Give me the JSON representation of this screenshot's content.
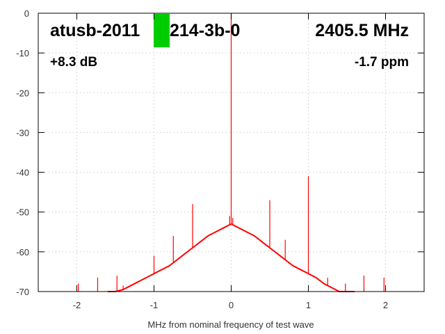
{
  "chart_data": {
    "type": "line",
    "annotations": [
      "atusb-2011",
      "214-3b-0",
      "2405.5 MHz",
      "+8.3 dB",
      "-1.7 ppm"
    ],
    "xlabel": "MHz from nominal frequency of test wave",
    "color": "#ff0000",
    "grid": true,
    "xlim": [
      -2.5,
      2.5
    ],
    "ylim": [
      -70,
      0
    ],
    "xticks": [
      -2,
      -1,
      0,
      1,
      2
    ],
    "yticks": [
      0,
      -10,
      -20,
      -30,
      -40,
      -50,
      -60,
      -70
    ],
    "x": [
      -1.6,
      -1.5,
      -1.4,
      -1.3,
      -1.2,
      -1.1,
      -1.0,
      -0.9,
      -0.8,
      -0.7,
      -0.6,
      -0.5,
      -0.4,
      -0.3,
      -0.2,
      -0.1,
      0,
      0.1,
      0.2,
      0.3,
      0.4,
      0.5,
      0.6,
      0.7,
      0.8,
      0.9,
      1.0,
      1.1,
      1.2,
      1.3,
      1.4,
      1.5,
      1.6
    ],
    "values": [
      -70,
      -70,
      -69.5,
      -68.5,
      -67.5,
      -66.5,
      -65.5,
      -64.5,
      -63.5,
      -62,
      -60.5,
      -59,
      -57.5,
      -56,
      -55,
      -54,
      -53,
      -54,
      -55,
      -56,
      -57.5,
      -59,
      -60.5,
      -62,
      -63.5,
      -64.5,
      -65.5,
      -66.5,
      -68,
      -69,
      -70,
      -70,
      -70
    ],
    "spikes": {
      "x": [
        -1.98,
        -1.73,
        -1.48,
        -1.4,
        -1.0,
        -0.75,
        -0.5,
        -0.02,
        0,
        0.02,
        0.5,
        0.7,
        1.0,
        1.25,
        1.48,
        1.72,
        1.98
      ],
      "values": [
        -68,
        -66.5,
        -66,
        -68.5,
        -61,
        -56,
        -48,
        -51,
        0,
        -51.5,
        -47,
        -57,
        -41,
        -66.5,
        -68,
        -66,
        -66.5
      ]
    }
  }
}
